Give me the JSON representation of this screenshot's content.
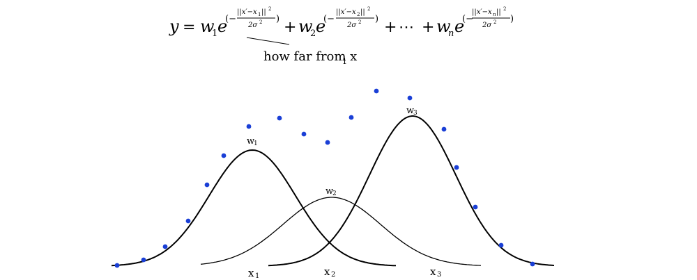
{
  "formula": {
    "lhs": "y",
    "equals": "=",
    "terms": [
      {
        "weight": "w",
        "weight_sub": "1",
        "base": "e",
        "numerator": "||x′−x",
        "numerator_sub": "1",
        "numerator_end": "||",
        "numerator_pow": "2",
        "denominator": "2σ",
        "denominator_pow": "2"
      },
      {
        "weight": "w",
        "weight_sub": "2",
        "base": "e",
        "numerator": "||x′−x",
        "numerator_sub": "2",
        "numerator_end": "||",
        "numerator_pow": "2",
        "denominator": "2σ",
        "denominator_pow": "2"
      },
      {
        "weight": "w",
        "weight_sub": "n",
        "base": "e",
        "numerator": "||x′−x",
        "numerator_sub": "n",
        "numerator_end": "||",
        "numerator_pow": "2",
        "denominator": "2σ",
        "denominator_pow": "2"
      }
    ],
    "plus": "+",
    "ellipsis": "⋯",
    "open_paren": "(−",
    "close_paren": ")"
  },
  "annotation": {
    "text": "how far from x",
    "sub": "1"
  },
  "curve_labels": {
    "w1": {
      "letter": "w",
      "sub": "1"
    },
    "w2": {
      "letter": "w",
      "sub": "2"
    },
    "w3": {
      "letter": "w",
      "sub": "3"
    }
  },
  "center_labels": {
    "x1": {
      "letter": "x",
      "sub": "1"
    },
    "x2": {
      "letter": "x",
      "sub": "2"
    },
    "x3": {
      "letter": "x",
      "sub": "3"
    }
  },
  "colors": {
    "points": "#1a3fd6",
    "curves": "#000000"
  },
  "point_count": 21
}
